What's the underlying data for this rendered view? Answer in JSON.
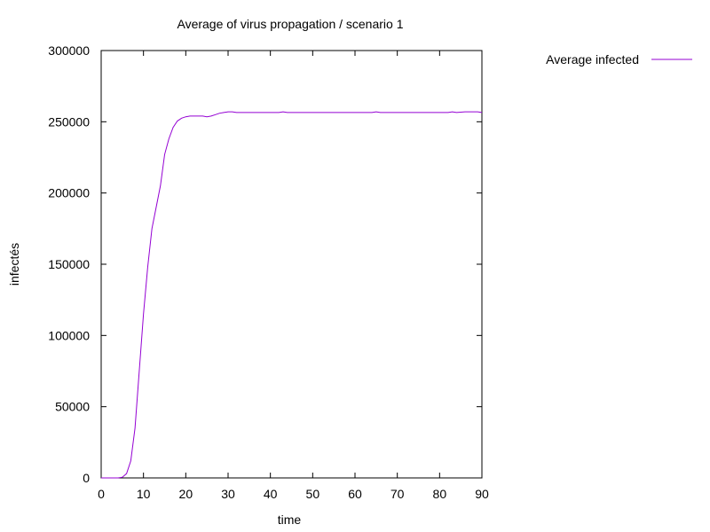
{
  "chart_data": {
    "type": "line",
    "title": "Average of virus propagation / scenario 1",
    "xlabel": "time",
    "ylabel": "infectés",
    "xlim": [
      0,
      90
    ],
    "ylim": [
      0,
      300000
    ],
    "x_ticks": [
      0,
      10,
      20,
      30,
      40,
      50,
      60,
      70,
      80,
      90
    ],
    "y_ticks": [
      0,
      50000,
      100000,
      150000,
      200000,
      250000,
      300000
    ],
    "x_tick_labels": [
      "0",
      "10",
      "20",
      "30",
      "40",
      "50",
      "60",
      "70",
      "80",
      "90"
    ],
    "y_tick_labels": [
      "0",
      "50000",
      "100000",
      "150000",
      "200000",
      "250000",
      "300000"
    ],
    "grid": false,
    "legend": {
      "position": "outside-top-right"
    },
    "series": [
      {
        "name": "Average infected",
        "color": "#9400d3",
        "x": [
          0,
          1,
          2,
          3,
          4,
          5,
          6,
          7,
          8,
          9,
          10,
          11,
          12,
          13,
          14,
          15,
          16,
          17,
          18,
          19,
          20,
          21,
          22,
          23,
          24,
          25,
          26,
          27,
          28,
          29,
          30,
          31,
          32,
          33,
          34,
          35,
          36,
          38,
          40,
          42,
          43,
          44,
          46,
          48,
          50,
          52,
          54,
          56,
          58,
          60,
          62,
          64,
          65,
          66,
          68,
          70,
          72,
          74,
          76,
          78,
          80,
          82,
          83,
          84,
          86,
          88,
          89,
          90
        ],
        "y": [
          0,
          0,
          0,
          0,
          0,
          500,
          3000,
          12000,
          35000,
          75000,
          115000,
          148000,
          175000,
          190000,
          205000,
          227000,
          238000,
          246000,
          250500,
          252500,
          253500,
          254000,
          254000,
          254000,
          254000,
          253500,
          254000,
          255000,
          256000,
          256500,
          257000,
          257000,
          256500,
          256500,
          256500,
          256500,
          256500,
          256500,
          256500,
          256500,
          257000,
          256500,
          256500,
          256500,
          256500,
          256500,
          256500,
          256500,
          256500,
          256500,
          256500,
          256500,
          257000,
          256500,
          256500,
          256500,
          256500,
          256500,
          256500,
          256500,
          256500,
          256500,
          257000,
          256500,
          257000,
          257000,
          257000,
          256500
        ]
      }
    ]
  }
}
